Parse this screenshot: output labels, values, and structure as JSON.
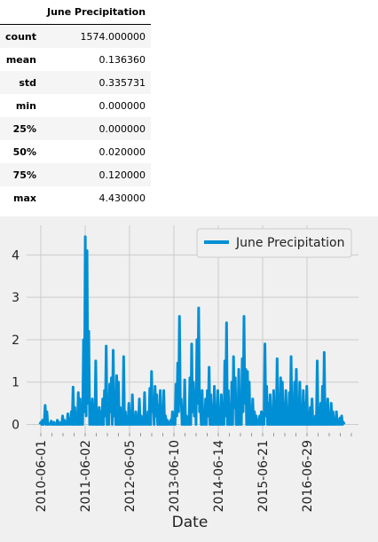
{
  "table": {
    "header": "June Precipitation",
    "rows": [
      {
        "label": "count",
        "value": "1574.000000"
      },
      {
        "label": "mean",
        "value": "0.136360"
      },
      {
        "label": "std",
        "value": "0.335731"
      },
      {
        "label": "min",
        "value": "0.000000"
      },
      {
        "label": "25%",
        "value": "0.000000"
      },
      {
        "label": "50%",
        "value": "0.020000"
      },
      {
        "label": "75%",
        "value": "0.120000"
      },
      {
        "label": "max",
        "value": "4.430000"
      }
    ]
  },
  "chart_data": {
    "type": "line",
    "xlabel": "Date",
    "ylabel": "",
    "ylim": [
      -0.2,
      4.7
    ],
    "yticks": [
      0,
      1,
      2,
      3,
      4
    ],
    "xticks": [
      "2010-06-01",
      "2011-06-02",
      "2012-06-05",
      "2013-06-10",
      "2014-06-14",
      "2015-06-21",
      "2016-06-29"
    ],
    "grid": true,
    "legend_position": "top-right",
    "series": [
      {
        "name": "June Precipitation",
        "color": "#008fd5",
        "values": [
          0.0,
          0.05,
          0.0,
          0.1,
          0.0,
          0.03,
          0.45,
          0.0,
          0.3,
          0.0,
          0.02,
          0.0,
          0.01,
          0.08,
          0.0,
          0.0,
          0.05,
          0.0,
          0.02,
          0.0,
          0.1,
          0.0,
          0.05,
          0.0,
          0.01,
          0.0,
          0.2,
          0.0,
          0.1,
          0.0,
          0.03,
          0.0,
          0.25,
          0.0,
          0.1,
          0.0,
          0.3,
          0.0,
          0.88,
          0.0,
          0.4,
          0.0,
          0.15,
          0.0,
          0.75,
          0.0,
          0.6,
          0.0,
          0.1,
          0.0,
          2.0,
          0.3,
          4.43,
          0.2,
          4.1,
          0.5,
          2.2,
          0.0,
          0.3,
          0.0,
          0.6,
          0.0,
          0.1,
          0.0,
          1.5,
          0.0,
          0.2,
          0.0,
          0.4,
          0.0,
          0.3,
          0.0,
          0.6,
          0.0,
          0.8,
          0.2,
          1.85,
          0.0,
          0.5,
          0.0,
          0.95,
          0.3,
          1.1,
          0.0,
          1.75,
          0.2,
          0.6,
          0.0,
          1.15,
          0.0,
          1.0,
          0.0,
          0.4,
          0.0,
          0.2,
          0.0,
          1.6,
          0.0,
          0.3,
          0.0,
          0.1,
          0.0,
          0.5,
          0.0,
          0.2,
          0.0,
          0.7,
          0.0,
          0.1,
          0.0,
          0.3,
          0.0,
          0.15,
          0.0,
          0.6,
          0.0,
          0.2,
          0.0,
          0.1,
          0.0,
          0.75,
          0.0,
          0.1,
          0.0,
          0.3,
          0.0,
          0.85,
          0.0,
          1.25,
          0.3,
          0.6,
          0.0,
          0.9,
          0.2,
          0.7,
          0.0,
          0.45,
          0.0,
          0.8,
          0.0,
          0.4,
          0.0,
          0.8,
          0.0,
          0.2,
          0.0,
          0.1,
          0.0,
          0.05,
          0.0,
          0.1,
          0.0,
          0.3,
          0.0,
          0.1,
          0.0,
          0.95,
          0.2,
          1.45,
          0.3,
          2.55,
          0.5,
          0.6,
          0.0,
          0.4,
          0.0,
          1.05,
          0.0,
          0.2,
          0.0,
          0.1,
          0.0,
          1.1,
          0.0,
          1.9,
          0.3,
          1.0,
          0.2,
          0.8,
          0.0,
          2.0,
          0.5,
          2.75,
          0.3,
          0.5,
          0.0,
          0.8,
          0.0,
          0.3,
          0.0,
          0.6,
          0.0,
          0.8,
          0.2,
          1.35,
          0.0,
          0.7,
          0.0,
          0.45,
          0.0,
          0.9,
          0.0,
          0.2,
          0.0,
          0.8,
          0.0,
          0.3,
          0.0,
          0.7,
          0.0,
          0.5,
          0.0,
          1.5,
          0.2,
          2.4,
          0.0,
          0.8,
          0.0,
          0.4,
          0.0,
          1.0,
          0.0,
          1.6,
          0.4,
          1.1,
          0.0,
          0.5,
          0.0,
          1.3,
          0.0,
          0.6,
          0.0,
          1.55,
          0.3,
          2.55,
          0.5,
          1.3,
          0.0,
          1.25,
          0.0,
          1.0,
          0.0,
          0.4,
          0.0,
          0.6,
          0.0,
          0.3,
          0.0,
          0.2,
          0.0,
          0.1,
          0.0,
          0.2,
          0.0,
          0.3,
          0.0,
          0.1,
          0.0,
          1.9,
          0.2,
          0.9,
          0.0,
          0.5,
          0.0,
          0.7,
          0.0,
          0.3,
          0.0,
          0.8,
          0.0,
          0.1,
          0.0,
          1.55,
          0.0,
          0.6,
          0.0,
          1.1,
          0.0,
          1.0,
          0.0,
          0.5,
          0.0,
          0.8,
          0.0,
          0.3,
          0.0,
          0.75,
          0.0,
          1.6,
          0.0,
          0.4,
          0.0,
          1.0,
          0.0,
          1.3,
          0.0,
          0.6,
          0.0,
          1.0,
          0.0,
          0.3,
          0.0,
          0.8,
          0.0,
          0.5,
          0.0,
          0.9,
          0.0,
          0.2,
          0.0,
          0.4,
          0.0,
          0.6,
          0.0,
          0.1,
          0.0,
          0.2,
          0.0,
          1.5,
          0.0,
          0.3,
          0.0,
          0.5,
          0.0,
          0.9,
          0.0,
          1.7,
          0.0,
          0.4,
          0.0,
          0.6,
          0.0,
          0.2,
          0.0,
          0.5,
          0.0,
          0.3,
          0.0,
          0.1,
          0.0,
          0.3,
          0.0,
          0.05,
          0.0,
          0.15,
          0.0,
          0.2,
          0.0,
          0.05,
          0.0
        ]
      }
    ]
  }
}
